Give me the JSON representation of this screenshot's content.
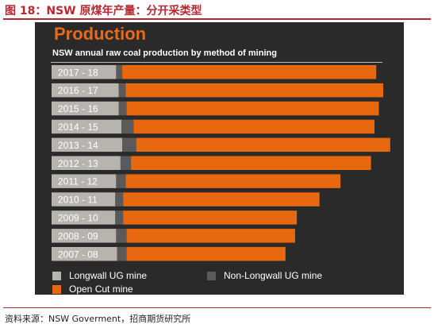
{
  "figure_title": "图 18：NSW 原煤年产量：分开采类型",
  "source": "资料来源：NSW Goverment，招商期货研究所",
  "chart_data": {
    "type": "bar",
    "orientation": "horizontal",
    "stacked": true,
    "title": "Production",
    "subtitle": "NSW annual raw coal production by method of mining",
    "categories": [
      "2017 - 18",
      "2016 - 17",
      "2015 - 16",
      "2014 - 15",
      "2013 - 14",
      "2012 - 13",
      "2011 - 12",
      "2010 - 11",
      "2009 - 10",
      "2008 - 09",
      "2007 - 08"
    ],
    "series": [
      {
        "name": "Longwall UG mine",
        "color": "#b7b3ae",
        "values": [
          74,
          77,
          77,
          80,
          81,
          79,
          74,
          73,
          73,
          74,
          75
        ]
      },
      {
        "name": "Non-Longwall UG mine",
        "color": "#5a5a5a",
        "values": [
          7,
          8,
          9,
          14,
          16,
          12,
          11,
          9,
          9,
          12,
          11
        ]
      },
      {
        "name": "Open Cut mine",
        "color": "#e8680f",
        "values": [
          291,
          295,
          289,
          276,
          291,
          275,
          246,
          225,
          199,
          193,
          182
        ]
      }
    ],
    "legend_position": "bottom",
    "grid": false
  }
}
